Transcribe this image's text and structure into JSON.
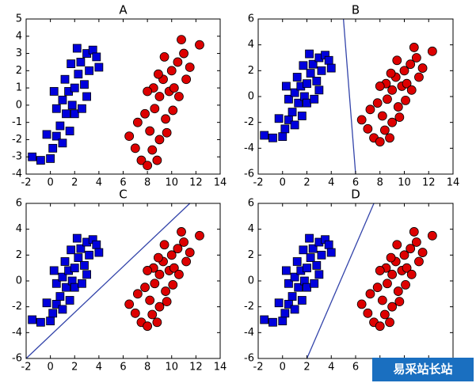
{
  "chart_data": [
    {
      "type": "scatter",
      "title": "A",
      "xlim": [
        -2,
        14
      ],
      "ylim": [
        -4,
        5
      ],
      "xticks": [
        -2,
        0,
        2,
        4,
        6,
        8,
        10,
        12,
        14
      ],
      "yticks": [
        -4,
        -3,
        -2,
        -1,
        0,
        1,
        2,
        3,
        4,
        5
      ],
      "series": [
        {
          "color": "#0000dd",
          "marker": "square",
          "x": [
            -1.5,
            -0.8,
            0,
            0.2,
            -0.3,
            0.5,
            1,
            0.8,
            1.3,
            0.5,
            1,
            1.5,
            1.8,
            2,
            1.2,
            2.3,
            2.5,
            2.2,
            3,
            3.5,
            3.2,
            3.8,
            2.8,
            2,
            1.6,
            3,
            2.6,
            0.3,
            1.7,
            4
          ],
          "values": [
            -3,
            -3.2,
            -3.1,
            -2.5,
            -1.7,
            -1.8,
            -2.2,
            -1.2,
            -0.5,
            -0.2,
            0.3,
            0.8,
            0,
            1,
            1.5,
            1.8,
            2.5,
            3.3,
            3,
            3.2,
            2,
            2.8,
            1.2,
            -0.5,
            -1.5,
            0.5,
            -0.2,
            0.8,
            2.4,
            2.2
          ]
        },
        {
          "color": "#dd0000",
          "marker": "circle",
          "x": [
            6.5,
            7,
            7.5,
            8,
            8.4,
            8.2,
            7.8,
            8.6,
            9,
            8.5,
            9.3,
            9.8,
            9.5,
            10,
            10.5,
            10.8,
            11,
            11.5,
            12.3,
            10.2,
            9,
            8.8,
            9.6,
            10.6,
            11.2,
            8,
            9.4,
            10.1,
            7.2,
            8.9
          ],
          "values": [
            -1.8,
            -2.5,
            -3.2,
            -3.5,
            -2.6,
            -1.5,
            -0.5,
            -0.2,
            0.5,
            1,
            1.5,
            0.8,
            -0.8,
            2,
            2.5,
            3.8,
            3,
            2.2,
            3.5,
            1,
            -2,
            -3.2,
            -1.6,
            0.5,
            1.5,
            0.8,
            2.8,
            -0.3,
            -1,
            1.8
          ]
        }
      ]
    },
    {
      "type": "scatter",
      "title": "B",
      "xlim": [
        -2,
        14
      ],
      "ylim": [
        -6,
        6
      ],
      "xticks": [
        -2,
        0,
        2,
        4,
        6,
        8,
        10,
        12,
        14
      ],
      "yticks": [
        -6,
        -4,
        -2,
        0,
        2,
        4,
        6
      ],
      "series": [
        {
          "color": "#0000dd",
          "marker": "square",
          "x": [
            -1.5,
            -0.8,
            0,
            0.2,
            -0.3,
            0.5,
            1,
            0.8,
            1.3,
            0.5,
            1,
            1.5,
            1.8,
            2,
            1.2,
            2.3,
            2.5,
            2.2,
            3,
            3.5,
            3.2,
            3.8,
            2.8,
            2,
            1.6,
            3,
            2.6,
            0.3,
            1.7,
            4
          ],
          "values": [
            -3,
            -3.2,
            -3.1,
            -2.5,
            -1.7,
            -1.8,
            -2.2,
            -1.2,
            -0.5,
            -0.2,
            0.3,
            0.8,
            0,
            1,
            1.5,
            1.8,
            2.5,
            3.3,
            3,
            3.2,
            2,
            2.8,
            1.2,
            -0.5,
            -1.5,
            0.5,
            -0.2,
            0.8,
            2.4,
            2.2
          ]
        },
        {
          "color": "#dd0000",
          "marker": "circle",
          "x": [
            6.5,
            7,
            7.5,
            8,
            8.4,
            8.2,
            7.8,
            8.6,
            9,
            8.5,
            9.3,
            9.8,
            9.5,
            10,
            10.5,
            10.8,
            11,
            11.5,
            12.3,
            10.2,
            9,
            8.8,
            9.6,
            10.6,
            11.2,
            8,
            9.4,
            10.1,
            7.2,
            8.9
          ],
          "values": [
            -1.8,
            -2.5,
            -3.2,
            -3.5,
            -2.6,
            -1.5,
            -0.5,
            -0.2,
            0.5,
            1,
            1.5,
            0.8,
            -0.8,
            2,
            2.5,
            3.8,
            3,
            2.2,
            3.5,
            1,
            -2,
            -3.2,
            -1.6,
            0.5,
            1.5,
            0.8,
            2.8,
            -0.3,
            -1,
            1.8
          ]
        },
        {
          "color": "#3344aa",
          "marker": "line",
          "x": [
            5,
            6
          ],
          "values": [
            6,
            -6
          ]
        }
      ]
    },
    {
      "type": "scatter",
      "title": "C",
      "xlim": [
        -2,
        14
      ],
      "ylim": [
        -6,
        6
      ],
      "xticks": [
        -2,
        0,
        2,
        4,
        6,
        8,
        10,
        12,
        14
      ],
      "yticks": [
        -6,
        -4,
        -2,
        0,
        2,
        4,
        6
      ],
      "series": [
        {
          "color": "#0000dd",
          "marker": "square",
          "x": [
            -1.5,
            -0.8,
            0,
            0.2,
            -0.3,
            0.5,
            1,
            0.8,
            1.3,
            0.5,
            1,
            1.5,
            1.8,
            2,
            1.2,
            2.3,
            2.5,
            2.2,
            3,
            3.5,
            3.2,
            3.8,
            2.8,
            2,
            1.6,
            3,
            2.6,
            0.3,
            1.7,
            4
          ],
          "values": [
            -3,
            -3.2,
            -3.1,
            -2.5,
            -1.7,
            -1.8,
            -2.2,
            -1.2,
            -0.5,
            -0.2,
            0.3,
            0.8,
            0,
            1,
            1.5,
            1.8,
            2.5,
            3.3,
            3,
            3.2,
            2,
            2.8,
            1.2,
            -0.5,
            -1.5,
            0.5,
            -0.2,
            0.8,
            2.4,
            2.2
          ]
        },
        {
          "color": "#dd0000",
          "marker": "circle",
          "x": [
            6.5,
            7,
            7.5,
            8,
            8.4,
            8.2,
            7.8,
            8.6,
            9,
            8.5,
            9.3,
            9.8,
            9.5,
            10,
            10.5,
            10.8,
            11,
            11.5,
            12.3,
            10.2,
            9,
            8.8,
            9.6,
            10.6,
            11.2,
            8,
            9.4,
            10.1,
            7.2,
            8.9
          ],
          "values": [
            -1.8,
            -2.5,
            -3.2,
            -3.5,
            -2.6,
            -1.5,
            -0.5,
            -0.2,
            0.5,
            1,
            1.5,
            0.8,
            -0.8,
            2,
            2.5,
            3.8,
            3,
            2.2,
            3.5,
            1,
            -2,
            -3.2,
            -1.6,
            0.5,
            1.5,
            0.8,
            2.8,
            -0.3,
            -1,
            1.8
          ]
        },
        {
          "color": "#3344aa",
          "marker": "line",
          "x": [
            -2,
            11.5
          ],
          "values": [
            -6,
            6
          ]
        }
      ]
    },
    {
      "type": "scatter",
      "title": "D",
      "xlim": [
        -2,
        14
      ],
      "ylim": [
        -6,
        6
      ],
      "xticks": [
        -2,
        0,
        2,
        4,
        6,
        8,
        10,
        12,
        14
      ],
      "yticks": [
        -6,
        -4,
        -2,
        0,
        2,
        4,
        6
      ],
      "series": [
        {
          "color": "#0000dd",
          "marker": "square",
          "x": [
            -1.5,
            -0.8,
            0,
            0.2,
            -0.3,
            0.5,
            1,
            0.8,
            1.3,
            0.5,
            1,
            1.5,
            1.8,
            2,
            1.2,
            2.3,
            2.5,
            2.2,
            3,
            3.5,
            3.2,
            3.8,
            2.8,
            2,
            1.6,
            3,
            2.6,
            0.3,
            1.7,
            4
          ],
          "values": [
            -3,
            -3.2,
            -3.1,
            -2.5,
            -1.7,
            -1.8,
            -2.2,
            -1.2,
            -0.5,
            -0.2,
            0.3,
            0.8,
            0,
            1,
            1.5,
            1.8,
            2.5,
            3.3,
            3,
            3.2,
            2,
            2.8,
            1.2,
            -0.5,
            -1.5,
            0.5,
            -0.2,
            0.8,
            2.4,
            2.2
          ]
        },
        {
          "color": "#dd0000",
          "marker": "circle",
          "x": [
            6.5,
            7,
            7.5,
            8,
            8.4,
            8.2,
            7.8,
            8.6,
            9,
            8.5,
            9.3,
            9.8,
            9.5,
            10,
            10.5,
            10.8,
            11,
            11.5,
            12.3,
            10.2,
            9,
            8.8,
            9.6,
            10.6,
            11.2,
            8,
            9.4,
            10.1,
            7.2,
            8.9
          ],
          "values": [
            -1.8,
            -2.5,
            -3.2,
            -3.5,
            -2.6,
            -1.5,
            -0.5,
            -0.2,
            0.5,
            1,
            1.5,
            0.8,
            -0.8,
            2,
            2.5,
            3.8,
            3,
            2.2,
            3.5,
            1,
            -2,
            -3.2,
            -1.6,
            0.5,
            1.5,
            0.8,
            2.8,
            -0.3,
            -1,
            1.8
          ]
        },
        {
          "color": "#3344aa",
          "marker": "line",
          "x": [
            2,
            7.5
          ],
          "values": [
            -6,
            6
          ]
        }
      ]
    }
  ],
  "watermark": "易采站长站"
}
